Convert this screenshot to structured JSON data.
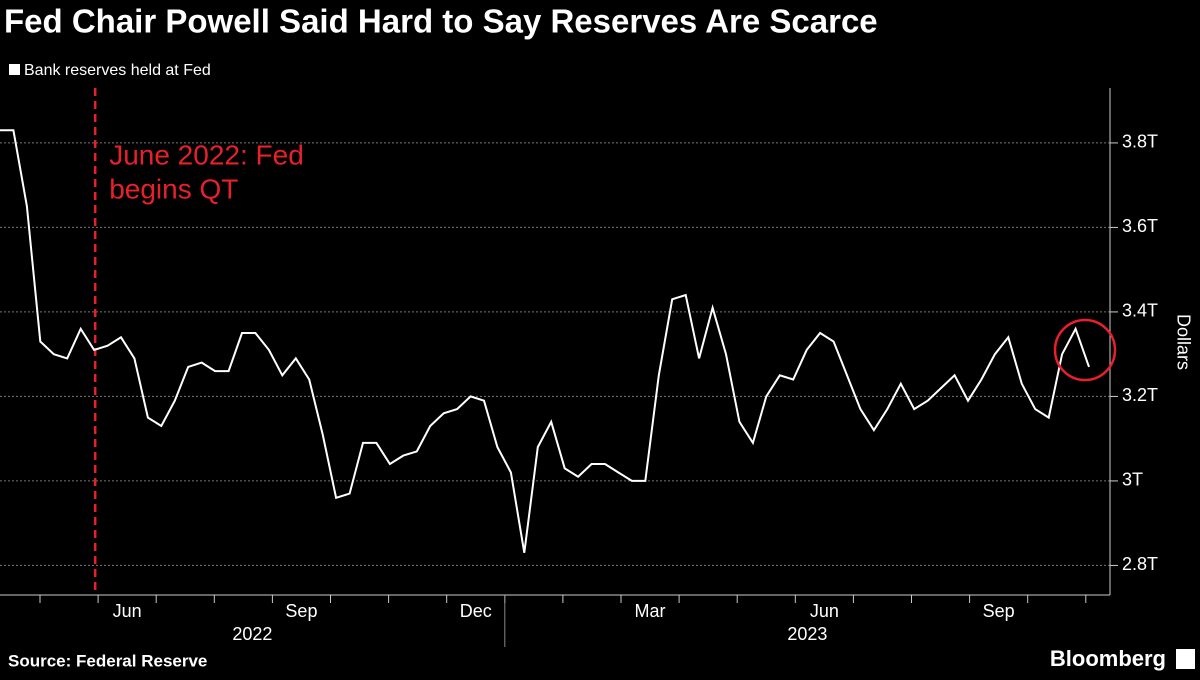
{
  "chart_data": {
    "type": "line",
    "title": "Fed Chair Powell Said Hard to Say Reserves Are Scarce",
    "y_label": "Dollars",
    "source": "Source: Federal Reserve",
    "brand": "Bloomberg",
    "annotation": {
      "lines": [
        "June 2022: Fed",
        "begins QT"
      ],
      "color": "#e8202a"
    },
    "months": [
      null,
      "Jun",
      null,
      null,
      "Sep",
      null,
      null,
      "Dec",
      null,
      null,
      "Mar",
      null,
      null,
      "Jun",
      null,
      null,
      "Sep",
      null
    ],
    "years": [
      "2022",
      "2023"
    ],
    "year_month_counts": [
      8,
      10
    ],
    "series": [
      {
        "name": "Bank reserves held at Fed",
        "color": "#ffffff",
        "values": [
          3.83,
          3.83,
          3.65,
          3.33,
          3.3,
          3.29,
          3.36,
          3.31,
          3.32,
          3.34,
          3.29,
          3.15,
          3.13,
          3.19,
          3.27,
          3.28,
          3.26,
          3.26,
          3.35,
          3.35,
          3.31,
          3.25,
          3.29,
          3.24,
          3.11,
          2.96,
          2.97,
          3.09,
          3.09,
          3.04,
          3.06,
          3.07,
          3.13,
          3.16,
          3.17,
          3.2,
          3.19,
          3.08,
          3.02,
          2.83,
          3.08,
          3.14,
          3.03,
          3.01,
          3.04,
          3.04,
          3.02,
          3.0,
          3.0,
          3.25,
          3.43,
          3.44,
          3.29,
          3.41,
          3.3,
          3.14,
          3.09,
          3.2,
          3.25,
          3.24,
          3.31,
          3.35,
          3.33,
          3.25,
          3.17,
          3.12,
          3.17,
          3.23,
          3.17,
          3.19,
          3.22,
          3.25,
          3.19,
          3.24,
          3.3,
          3.34,
          3.23,
          3.17,
          3.15,
          3.3,
          3.36,
          3.27
        ]
      }
    ],
    "ylim": [
      2.73,
      3.93
    ],
    "yticks": [
      {
        "value": 2.8,
        "label": "2.8T"
      },
      {
        "value": 3.0,
        "label": "3T"
      },
      {
        "value": 3.2,
        "label": "3.2T"
      },
      {
        "value": 3.4,
        "label": "3.4T"
      },
      {
        "value": 3.6,
        "label": "3.6T"
      },
      {
        "value": 3.8,
        "label": "3.8T"
      }
    ],
    "grid": true
  }
}
